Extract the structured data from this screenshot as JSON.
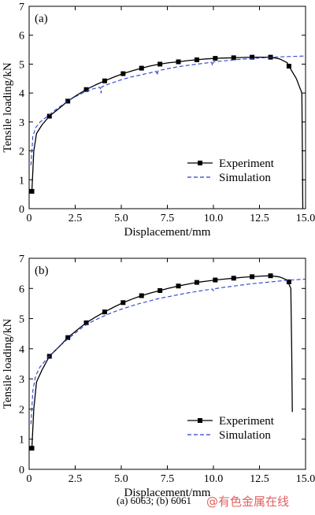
{
  "chart_data": [
    {
      "type": "line",
      "panel_label": "(a)",
      "xlabel": "Displacement/mm",
      "ylabel": "Tensile loading/kN",
      "xlim": [
        0,
        15
      ],
      "ylim": [
        0,
        7
      ],
      "xticks": [
        "0",
        "2.5",
        "5.0",
        "7.5",
        "10.0",
        "12.5",
        "15.0"
      ],
      "yticks": [
        "0",
        "1",
        "2",
        "3",
        "4",
        "5",
        "6",
        "7"
      ],
      "legend_position": "lower-right",
      "series": [
        {
          "name": "Experiment",
          "style": "solid",
          "marker": "square",
          "color": "#000000",
          "points": [
            [
              0.15,
              0.6
            ],
            [
              0.25,
              2.0
            ],
            [
              0.4,
              2.6
            ],
            [
              0.7,
              2.9
            ],
            [
              1.1,
              3.2
            ],
            [
              1.6,
              3.45
            ],
            [
              2.1,
              3.72
            ],
            [
              2.6,
              3.93
            ],
            [
              3.1,
              4.12
            ],
            [
              3.6,
              4.28
            ],
            [
              4.1,
              4.42
            ],
            [
              4.6,
              4.55
            ],
            [
              5.1,
              4.67
            ],
            [
              5.6,
              4.77
            ],
            [
              6.1,
              4.86
            ],
            [
              6.6,
              4.94
            ],
            [
              7.1,
              5.0
            ],
            [
              7.6,
              5.05
            ],
            [
              8.1,
              5.08
            ],
            [
              8.6,
              5.12
            ],
            [
              9.1,
              5.15
            ],
            [
              9.6,
              5.18
            ],
            [
              10.1,
              5.2
            ],
            [
              10.6,
              5.21
            ],
            [
              11.1,
              5.22
            ],
            [
              11.6,
              5.23
            ],
            [
              12.1,
              5.24
            ],
            [
              12.6,
              5.24
            ],
            [
              13.1,
              5.24
            ],
            [
              13.6,
              5.18
            ],
            [
              14.0,
              5.05
            ],
            [
              14.1,
              4.93
            ],
            [
              14.5,
              4.5
            ],
            [
              14.8,
              4.0
            ],
            [
              14.83,
              2.0
            ],
            [
              14.85,
              0.0
            ]
          ],
          "marker_points": [
            [
              0.15,
              0.6
            ],
            [
              1.1,
              3.2
            ],
            [
              2.1,
              3.72
            ],
            [
              3.1,
              4.12
            ],
            [
              4.1,
              4.42
            ],
            [
              5.1,
              4.67
            ],
            [
              6.1,
              4.86
            ],
            [
              7.1,
              5.0
            ],
            [
              8.1,
              5.08
            ],
            [
              9.1,
              5.15
            ],
            [
              10.1,
              5.2
            ],
            [
              11.1,
              5.22
            ],
            [
              12.1,
              5.24
            ],
            [
              13.1,
              5.24
            ],
            [
              14.1,
              4.93
            ]
          ]
        },
        {
          "name": "Simulation",
          "style": "dashed",
          "color": "#2b3fd0",
          "points": [
            [
              0.1,
              1.5
            ],
            [
              0.2,
              2.5
            ],
            [
              0.35,
              2.8
            ],
            [
              0.6,
              3.0
            ],
            [
              1.0,
              3.2
            ],
            [
              1.5,
              3.45
            ],
            [
              2.0,
              3.68
            ],
            [
              2.5,
              3.87
            ],
            [
              3.0,
              4.03
            ],
            [
              3.5,
              4.15
            ],
            [
              3.85,
              4.2
            ],
            [
              3.9,
              4.0
            ],
            [
              3.95,
              4.22
            ],
            [
              4.5,
              4.35
            ],
            [
              5.0,
              4.46
            ],
            [
              5.5,
              4.55
            ],
            [
              6.0,
              4.62
            ],
            [
              6.5,
              4.69
            ],
            [
              6.9,
              4.75
            ],
            [
              6.95,
              4.62
            ],
            [
              7.0,
              4.77
            ],
            [
              7.5,
              4.84
            ],
            [
              8.0,
              4.9
            ],
            [
              8.5,
              4.95
            ],
            [
              9.0,
              4.99
            ],
            [
              9.5,
              5.03
            ],
            [
              9.9,
              5.06
            ],
            [
              9.95,
              4.95
            ],
            [
              10.0,
              5.08
            ],
            [
              10.5,
              5.11
            ],
            [
              11.0,
              5.14
            ],
            [
              11.5,
              5.17
            ],
            [
              12.0,
              5.19
            ],
            [
              12.5,
              5.21
            ],
            [
              13.0,
              5.23
            ],
            [
              13.5,
              5.25
            ],
            [
              14.0,
              5.26
            ],
            [
              14.5,
              5.27
            ],
            [
              15.0,
              5.28
            ]
          ]
        }
      ]
    },
    {
      "type": "line",
      "panel_label": "(b)",
      "xlabel": "Displacement/mm",
      "ylabel": "Tensile loading/kN",
      "xlim": [
        0,
        15
      ],
      "ylim": [
        0,
        7
      ],
      "xticks": [
        "0",
        "2.5",
        "5.0",
        "7.5",
        "10.0",
        "12.5",
        "15.0"
      ],
      "yticks": [
        "0",
        "1",
        "2",
        "3",
        "4",
        "5",
        "6",
        "7"
      ],
      "legend_position": "lower-right",
      "series": [
        {
          "name": "Experiment",
          "style": "solid",
          "marker": "square",
          "color": "#000000",
          "points": [
            [
              0.15,
              0.7
            ],
            [
              0.25,
              2.0
            ],
            [
              0.4,
              2.9
            ],
            [
              0.7,
              3.3
            ],
            [
              1.1,
              3.75
            ],
            [
              1.6,
              4.05
            ],
            [
              2.1,
              4.37
            ],
            [
              2.6,
              4.62
            ],
            [
              3.1,
              4.86
            ],
            [
              3.6,
              5.05
            ],
            [
              4.1,
              5.22
            ],
            [
              4.6,
              5.38
            ],
            [
              5.1,
              5.53
            ],
            [
              5.6,
              5.65
            ],
            [
              6.1,
              5.76
            ],
            [
              6.6,
              5.85
            ],
            [
              7.1,
              5.93
            ],
            [
              7.6,
              6.01
            ],
            [
              8.1,
              6.08
            ],
            [
              8.6,
              6.14
            ],
            [
              9.1,
              6.2
            ],
            [
              9.6,
              6.24
            ],
            [
              10.1,
              6.28
            ],
            [
              10.6,
              6.31
            ],
            [
              11.1,
              6.34
            ],
            [
              11.6,
              6.37
            ],
            [
              12.1,
              6.39
            ],
            [
              12.6,
              6.41
            ],
            [
              13.1,
              6.42
            ],
            [
              13.6,
              6.38
            ],
            [
              14.0,
              6.28
            ],
            [
              14.2,
              6.0
            ],
            [
              14.25,
              4.0
            ],
            [
              14.28,
              1.9
            ]
          ],
          "marker_points": [
            [
              0.15,
              0.7
            ],
            [
              1.1,
              3.75
            ],
            [
              2.1,
              4.37
            ],
            [
              3.1,
              4.86
            ],
            [
              4.1,
              5.22
            ],
            [
              5.1,
              5.53
            ],
            [
              6.1,
              5.76
            ],
            [
              7.1,
              5.93
            ],
            [
              8.1,
              6.08
            ],
            [
              9.1,
              6.2
            ],
            [
              10.1,
              6.28
            ],
            [
              11.1,
              6.34
            ],
            [
              12.1,
              6.39
            ],
            [
              13.1,
              6.42
            ],
            [
              14.1,
              6.22
            ]
          ]
        },
        {
          "name": "Simulation",
          "style": "dashed",
          "color": "#2b3fd0",
          "points": [
            [
              0.1,
              1.5
            ],
            [
              0.2,
              2.6
            ],
            [
              0.35,
              3.1
            ],
            [
              0.6,
              3.4
            ],
            [
              1.0,
              3.7
            ],
            [
              1.5,
              4.0
            ],
            [
              2.0,
              4.27
            ],
            [
              2.5,
              4.52
            ],
            [
              3.0,
              4.76
            ],
            [
              3.5,
              4.93
            ],
            [
              4.0,
              5.07
            ],
            [
              4.5,
              5.2
            ],
            [
              5.0,
              5.31
            ],
            [
              5.5,
              5.41
            ],
            [
              6.0,
              5.5
            ],
            [
              6.5,
              5.58
            ],
            [
              7.0,
              5.66
            ],
            [
              7.5,
              5.72
            ],
            [
              8.0,
              5.78
            ],
            [
              8.5,
              5.84
            ],
            [
              9.0,
              5.89
            ],
            [
              9.5,
              5.94
            ],
            [
              9.95,
              5.98
            ],
            [
              10.0,
              5.92
            ],
            [
              10.05,
              5.99
            ],
            [
              10.5,
              6.03
            ],
            [
              11.0,
              6.07
            ],
            [
              11.5,
              6.11
            ],
            [
              12.0,
              6.15
            ],
            [
              12.5,
              6.18
            ],
            [
              13.0,
              6.21
            ],
            [
              13.5,
              6.24
            ],
            [
              14.0,
              6.27
            ],
            [
              14.5,
              6.29
            ],
            [
              15.0,
              6.31
            ]
          ]
        }
      ]
    }
  ],
  "caption": "(a) 6063; (b) 6061",
  "watermark": "@有色金属在线"
}
